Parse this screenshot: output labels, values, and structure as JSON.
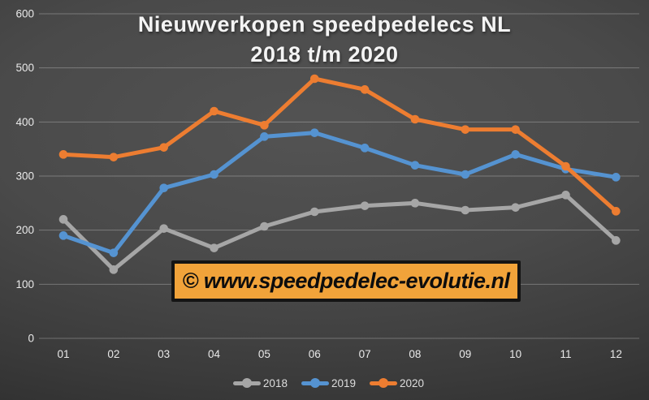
{
  "title": {
    "line1": "Nieuwverkopen speedpedelecs NL",
    "line2": "2018 t/m 2020"
  },
  "watermark": {
    "text": "© www.speedpedelec-evolutie.nl",
    "bg_color": "#F1A33A",
    "border_color": "#141414",
    "text_color": "#0d0d0d"
  },
  "chart_data": {
    "type": "line",
    "title": "Nieuwverkopen speedpedelecs NL 2018 t/m 2020",
    "xlabel": "",
    "ylabel": "",
    "ylim": [
      0,
      600
    ],
    "yticks": [
      0,
      100,
      200,
      300,
      400,
      500,
      600
    ],
    "grid": true,
    "legend_position": "bottom",
    "categories": [
      "01",
      "02",
      "03",
      "04",
      "05",
      "06",
      "07",
      "08",
      "09",
      "10",
      "11",
      "12"
    ],
    "series": [
      {
        "name": "2018",
        "color": "#A6A6A6",
        "values": [
          220,
          127,
          203,
          167,
          207,
          234,
          245,
          250,
          237,
          242,
          265,
          181
        ]
      },
      {
        "name": "2019",
        "color": "#5593D1",
        "values": [
          190,
          158,
          278,
          303,
          373,
          380,
          352,
          320,
          303,
          340,
          313,
          298
        ]
      },
      {
        "name": "2020",
        "color": "#ED7D31",
        "values": [
          340,
          335,
          353,
          420,
          394,
          480,
          460,
          405,
          386,
          386,
          318,
          235
        ]
      }
    ]
  }
}
